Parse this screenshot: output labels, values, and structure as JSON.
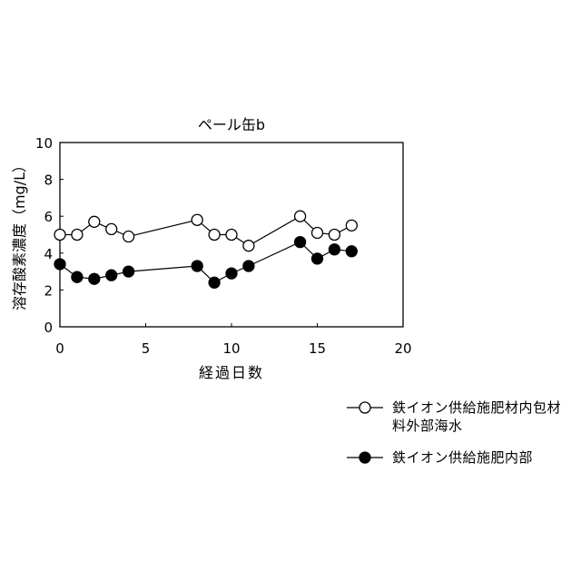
{
  "chart_data": {
    "type": "line",
    "title": "ペール缶b",
    "xlabel": "経過日数",
    "ylabel": "溶存酸素濃度（mg/L）",
    "xlim": [
      0,
      20
    ],
    "ylim": [
      0,
      10
    ],
    "xticks": [
      0,
      5,
      10,
      15,
      20
    ],
    "yticks": [
      0,
      2,
      4,
      6,
      8,
      10
    ],
    "grid": false,
    "legend_position": "below-right",
    "series": [
      {
        "name": "鉄イオン供給施肥材内包材料外部海水",
        "marker": "open-circle",
        "color": "#000000",
        "x": [
          0,
          1,
          2,
          3,
          4,
          8,
          9,
          10,
          11,
          14,
          15,
          16,
          17
        ],
        "y": [
          5.0,
          5.0,
          5.7,
          5.3,
          4.9,
          5.8,
          5.0,
          5.0,
          4.4,
          6.0,
          5.1,
          5.0,
          5.5
        ]
      },
      {
        "name": "鉄イオン供給施肥内部",
        "marker": "filled-circle",
        "color": "#000000",
        "x": [
          0,
          1,
          2,
          3,
          4,
          8,
          9,
          10,
          11,
          14,
          15,
          16,
          17
        ],
        "y": [
          3.4,
          2.7,
          2.6,
          2.8,
          3.0,
          3.3,
          2.4,
          2.9,
          3.3,
          4.6,
          3.7,
          4.2,
          4.1
        ]
      }
    ]
  }
}
